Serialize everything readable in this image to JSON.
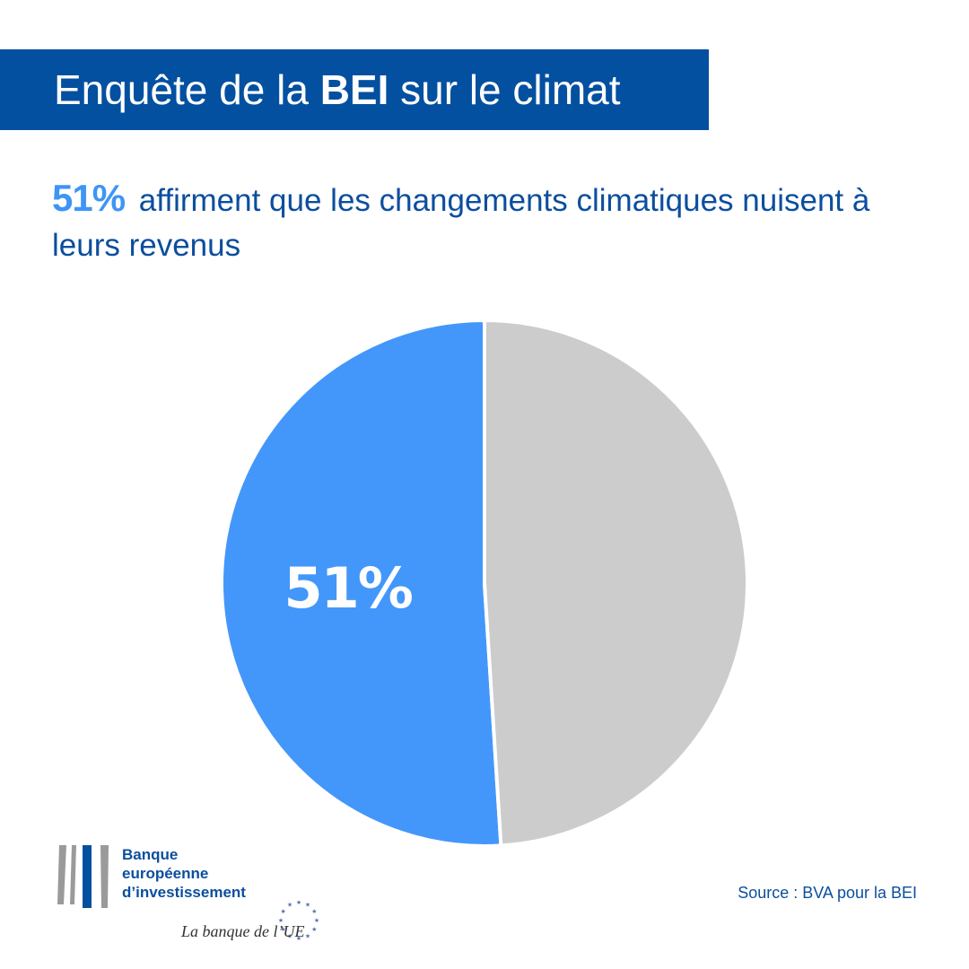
{
  "header": {
    "title_prefix": "Enquête de la ",
    "title_bold": "BEI",
    "title_suffix": " sur le climat",
    "banner_color": "#0450a0"
  },
  "subtitle": {
    "highlight": "51%",
    "text": "affirment que les changements climatiques nuisent à leurs revenus"
  },
  "chart_data": {
    "type": "pie",
    "title": "",
    "slices": [
      {
        "label": "51%",
        "value": 51,
        "color": "#4397fa"
      },
      {
        "label": "",
        "value": 49,
        "color": "#cccccc"
      }
    ]
  },
  "logo": {
    "name_lines": [
      "Banque",
      "européenne",
      "d’investissement"
    ],
    "tagline": "La banque de l’UE",
    "bar_colors": [
      "#9a9a9a",
      "#0450a0"
    ]
  },
  "source": "Source : BVA pour la BEI"
}
